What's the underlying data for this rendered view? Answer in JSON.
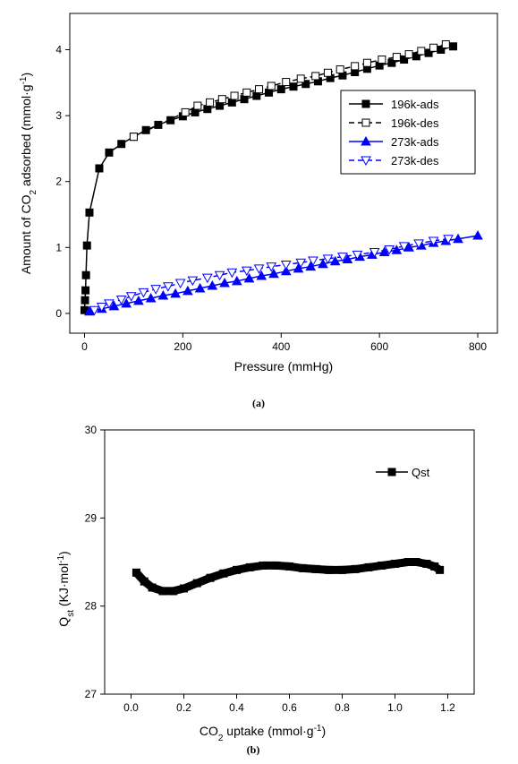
{
  "chart_data": [
    {
      "id": "a",
      "type": "scatter",
      "caption": "(a)",
      "xlabel": "Pressure (mmHg)",
      "ylabel_prefix": "Amount of CO",
      "ylabel_sub": "2",
      "ylabel_mid": " adsorbed (mmol·g",
      "ylabel_sup": "-1",
      "ylabel_suffix": ")",
      "xlim": [
        -30,
        840
      ],
      "ylim": [
        -0.3,
        4.55
      ],
      "xticks": [
        0,
        200,
        400,
        600,
        800
      ],
      "yticks": [
        0,
        1,
        2,
        3,
        4
      ],
      "legend_position": "right",
      "series": [
        {
          "name": "196k-ads",
          "color": "#000000",
          "marker": "square-filled",
          "line": "solid",
          "points": [
            [
              0,
              0.05
            ],
            [
              1,
              0.2
            ],
            [
              2,
              0.35
            ],
            [
              3,
              0.58
            ],
            [
              5,
              1.03
            ],
            [
              10,
              1.53
            ],
            [
              30,
              2.2
            ],
            [
              50,
              2.44
            ],
            [
              75,
              2.57
            ],
            [
              100,
              2.68
            ],
            [
              125,
              2.78
            ],
            [
              150,
              2.86
            ],
            [
              175,
              2.93
            ],
            [
              200,
              2.99
            ],
            [
              225,
              3.05
            ],
            [
              250,
              3.1
            ],
            [
              275,
              3.15
            ],
            [
              300,
              3.2
            ],
            [
              325,
              3.25
            ],
            [
              350,
              3.3
            ],
            [
              375,
              3.35
            ],
            [
              400,
              3.4
            ],
            [
              425,
              3.44
            ],
            [
              450,
              3.48
            ],
            [
              475,
              3.52
            ],
            [
              500,
              3.57
            ],
            [
              525,
              3.61
            ],
            [
              550,
              3.66
            ],
            [
              575,
              3.71
            ],
            [
              600,
              3.76
            ],
            [
              625,
              3.8
            ],
            [
              650,
              3.85
            ],
            [
              675,
              3.9
            ],
            [
              700,
              3.95
            ],
            [
              725,
              4.0
            ],
            [
              750,
              4.05
            ]
          ]
        },
        {
          "name": "196k-des",
          "color": "#000000",
          "marker": "square-open",
          "line": "dashed",
          "points": [
            [
              735,
              4.08
            ],
            [
              710,
              4.03
            ],
            [
              685,
              3.98
            ],
            [
              660,
              3.93
            ],
            [
              635,
              3.89
            ],
            [
              605,
              3.85
            ],
            [
              575,
              3.8
            ],
            [
              550,
              3.75
            ],
            [
              520,
              3.7
            ],
            [
              495,
              3.65
            ],
            [
              470,
              3.6
            ],
            [
              440,
              3.56
            ],
            [
              410,
              3.51
            ],
            [
              380,
              3.45
            ],
            [
              355,
              3.4
            ],
            [
              330,
              3.35
            ],
            [
              305,
              3.3
            ],
            [
              280,
              3.25
            ],
            [
              255,
              3.2
            ],
            [
              230,
              3.15
            ],
            [
              205,
              3.05
            ],
            [
              100,
              2.68
            ]
          ]
        },
        {
          "name": "273k-ads",
          "color": "#0000ff",
          "marker": "triangle-up-filled",
          "line": "solid",
          "points": [
            [
              10,
              0.03
            ],
            [
              35,
              0.07
            ],
            [
              60,
              0.11
            ],
            [
              85,
              0.15
            ],
            [
              110,
              0.19
            ],
            [
              135,
              0.23
            ],
            [
              160,
              0.27
            ],
            [
              185,
              0.3
            ],
            [
              210,
              0.34
            ],
            [
              235,
              0.38
            ],
            [
              260,
              0.42
            ],
            [
              285,
              0.46
            ],
            [
              310,
              0.49
            ],
            [
              335,
              0.53
            ],
            [
              360,
              0.57
            ],
            [
              385,
              0.6
            ],
            [
              410,
              0.64
            ],
            [
              435,
              0.68
            ],
            [
              460,
              0.71
            ],
            [
              485,
              0.75
            ],
            [
              510,
              0.79
            ],
            [
              535,
              0.82
            ],
            [
              560,
              0.86
            ],
            [
              585,
              0.89
            ],
            [
              610,
              0.93
            ],
            [
              635,
              0.96
            ],
            [
              660,
              1.0
            ],
            [
              685,
              1.03
            ],
            [
              710,
              1.07
            ],
            [
              735,
              1.1
            ],
            [
              760,
              1.13
            ],
            [
              800,
              1.18
            ]
          ]
        },
        {
          "name": "273k-des",
          "color": "#0000ff",
          "marker": "triangle-down-open",
          "line": "dashed",
          "points": [
            [
              740,
              1.13
            ],
            [
              710,
              1.1
            ],
            [
              680,
              1.06
            ],
            [
              650,
              1.02
            ],
            [
              620,
              0.97
            ],
            [
              590,
              0.93
            ],
            [
              555,
              0.89
            ],
            [
              525,
              0.86
            ],
            [
              495,
              0.83
            ],
            [
              465,
              0.8
            ],
            [
              440,
              0.77
            ],
            [
              410,
              0.74
            ],
            [
              380,
              0.71
            ],
            [
              355,
              0.68
            ],
            [
              330,
              0.65
            ],
            [
              300,
              0.62
            ],
            [
              275,
              0.58
            ],
            [
              250,
              0.54
            ],
            [
              220,
              0.5
            ],
            [
              195,
              0.46
            ],
            [
              170,
              0.41
            ],
            [
              145,
              0.37
            ],
            [
              120,
              0.32
            ],
            [
              95,
              0.26
            ],
            [
              75,
              0.21
            ],
            [
              50,
              0.15
            ],
            [
              35,
              0.1
            ],
            [
              20,
              0.05
            ]
          ]
        }
      ]
    },
    {
      "id": "b",
      "type": "line",
      "caption": "(b)",
      "xlabel_prefix": "CO",
      "xlabel_sub": "2",
      "xlabel_mid": " uptake (mmol·g",
      "xlabel_sup": "-1",
      "xlabel_suffix": ")",
      "ylabel_prefix": "Q",
      "ylabel_sub": "st",
      "ylabel_mid": " (KJ·mol",
      "ylabel_sup": "-1",
      "ylabel_suffix": ")",
      "xlim": [
        -0.1,
        1.3
      ],
      "ylim": [
        27,
        30
      ],
      "xticks": [
        0.0,
        0.2,
        0.4,
        0.6,
        0.8,
        1.0,
        1.2
      ],
      "yticks": [
        27,
        28,
        29,
        30
      ],
      "legend_position": "top-right",
      "series": [
        {
          "name": "Qst",
          "color": "#000000",
          "marker": "square-filled",
          "x": [
            0.02,
            0.05,
            0.08,
            0.12,
            0.16,
            0.2,
            0.25,
            0.3,
            0.35,
            0.4,
            0.45,
            0.5,
            0.55,
            0.6,
            0.65,
            0.7,
            0.75,
            0.8,
            0.85,
            0.9,
            0.95,
            1.0,
            1.05,
            1.08,
            1.12,
            1.15,
            1.17
          ],
          "y": [
            28.38,
            28.28,
            28.21,
            28.17,
            28.17,
            28.2,
            28.26,
            28.32,
            28.37,
            28.41,
            28.44,
            28.46,
            28.46,
            28.45,
            28.43,
            28.42,
            28.41,
            28.41,
            28.42,
            28.44,
            28.46,
            28.48,
            28.5,
            28.5,
            28.48,
            28.45,
            28.41
          ]
        }
      ]
    }
  ]
}
